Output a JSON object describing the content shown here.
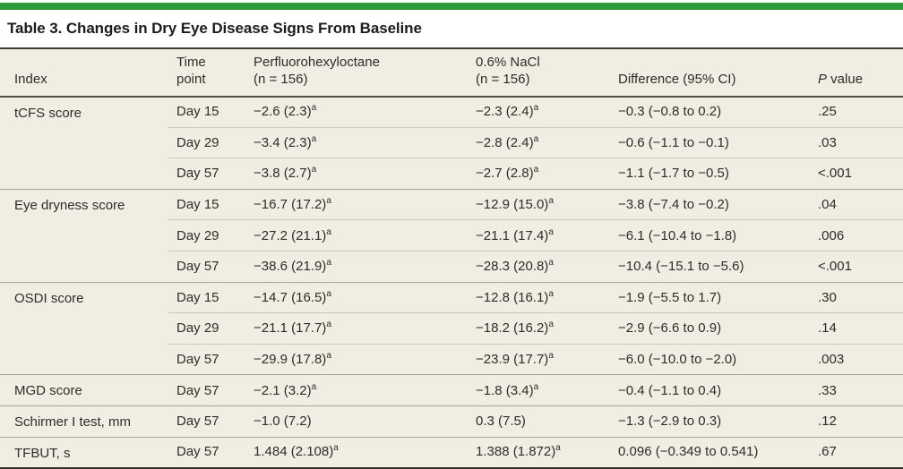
{
  "accent_color": "#2d9c3e",
  "title": "Table 3. Changes in Dry Eye Disease Signs From Baseline",
  "footnote_marker": "a",
  "table": {
    "columns": [
      {
        "key": "index",
        "label": "Index"
      },
      {
        "key": "time",
        "label": "Time\npoint"
      },
      {
        "key": "drug",
        "label": "Perfluorohexyloctane\n(n = 156)"
      },
      {
        "key": "control",
        "label": "0.6% NaCl\n(n = 156)"
      },
      {
        "key": "diff",
        "label": "Difference (95% CI)"
      },
      {
        "key": "p",
        "label": "P value",
        "italic_first": true
      }
    ],
    "groups": [
      {
        "index": "tCFS score",
        "rows": [
          {
            "time": "Day 15",
            "drug": {
              "v": "−2.6 (2.3)",
              "sup": "a"
            },
            "control": {
              "v": "−2.3 (2.4)",
              "sup": "a"
            },
            "diff": "−0.3 (−0.8 to 0.2)",
            "p": ".25"
          },
          {
            "time": "Day 29",
            "drug": {
              "v": "−3.4 (2.3)",
              "sup": "a"
            },
            "control": {
              "v": "−2.8 (2.4)",
              "sup": "a"
            },
            "diff": "−0.6 (−1.1 to −0.1)",
            "p": ".03"
          },
          {
            "time": "Day 57",
            "drug": {
              "v": "−3.8 (2.7)",
              "sup": "a"
            },
            "control": {
              "v": "−2.7 (2.8)",
              "sup": "a"
            },
            "diff": "−1.1 (−1.7 to −0.5)",
            "p": "<.001"
          }
        ]
      },
      {
        "index": "Eye dryness score",
        "rows": [
          {
            "time": "Day 15",
            "drug": {
              "v": "−16.7 (17.2)",
              "sup": "a"
            },
            "control": {
              "v": "−12.9 (15.0)",
              "sup": "a"
            },
            "diff": "−3.8 (−7.4 to −0.2)",
            "p": ".04"
          },
          {
            "time": "Day 29",
            "drug": {
              "v": "−27.2 (21.1)",
              "sup": "a"
            },
            "control": {
              "v": "−21.1 (17.4)",
              "sup": "a"
            },
            "diff": "−6.1 (−10.4 to −1.8)",
            "p": ".006"
          },
          {
            "time": "Day 57",
            "drug": {
              "v": "−38.6 (21.9)",
              "sup": "a"
            },
            "control": {
              "v": "−28.3 (20.8)",
              "sup": "a"
            },
            "diff": "−10.4 (−15.1 to −5.6)",
            "p": "<.001"
          }
        ]
      },
      {
        "index": "OSDI score",
        "rows": [
          {
            "time": "Day 15",
            "drug": {
              "v": "−14.7 (16.5)",
              "sup": "a"
            },
            "control": {
              "v": "−12.8 (16.1)",
              "sup": "a"
            },
            "diff": "−1.9 (−5.5 to 1.7)",
            "p": ".30"
          },
          {
            "time": "Day 29",
            "drug": {
              "v": "−21.1 (17.7)",
              "sup": "a"
            },
            "control": {
              "v": "−18.2 (16.2)",
              "sup": "a"
            },
            "diff": "−2.9 (−6.6 to 0.9)",
            "p": ".14"
          },
          {
            "time": "Day 57",
            "drug": {
              "v": "−29.9 (17.8)",
              "sup": "a"
            },
            "control": {
              "v": "−23.9 (17.7)",
              "sup": "a"
            },
            "diff": "−6.0 (−10.0 to −2.0)",
            "p": ".003"
          }
        ]
      },
      {
        "index": "MGD score",
        "rows": [
          {
            "time": "Day 57",
            "drug": {
              "v": "−2.1 (3.2)",
              "sup": "a"
            },
            "control": {
              "v": "−1.8 (3.4)",
              "sup": "a"
            },
            "diff": "−0.4 (−1.1 to 0.4)",
            "p": ".33"
          }
        ]
      },
      {
        "index": "Schirmer I test, mm",
        "rows": [
          {
            "time": "Day 57",
            "drug": {
              "v": "−1.0 (7.2)"
            },
            "control": {
              "v": "0.3 (7.5)"
            },
            "diff": "−1.3 (−2.9 to 0.3)",
            "p": ".12"
          }
        ]
      },
      {
        "index": "TFBUT, s",
        "rows": [
          {
            "time": "Day 57",
            "drug": {
              "v": "1.484 (2.108)",
              "sup": "a"
            },
            "control": {
              "v": "1.388 (1.872)",
              "sup": "a"
            },
            "diff": "0.096 (−0.349 to 0.541)",
            "p": ".67"
          }
        ]
      }
    ]
  }
}
